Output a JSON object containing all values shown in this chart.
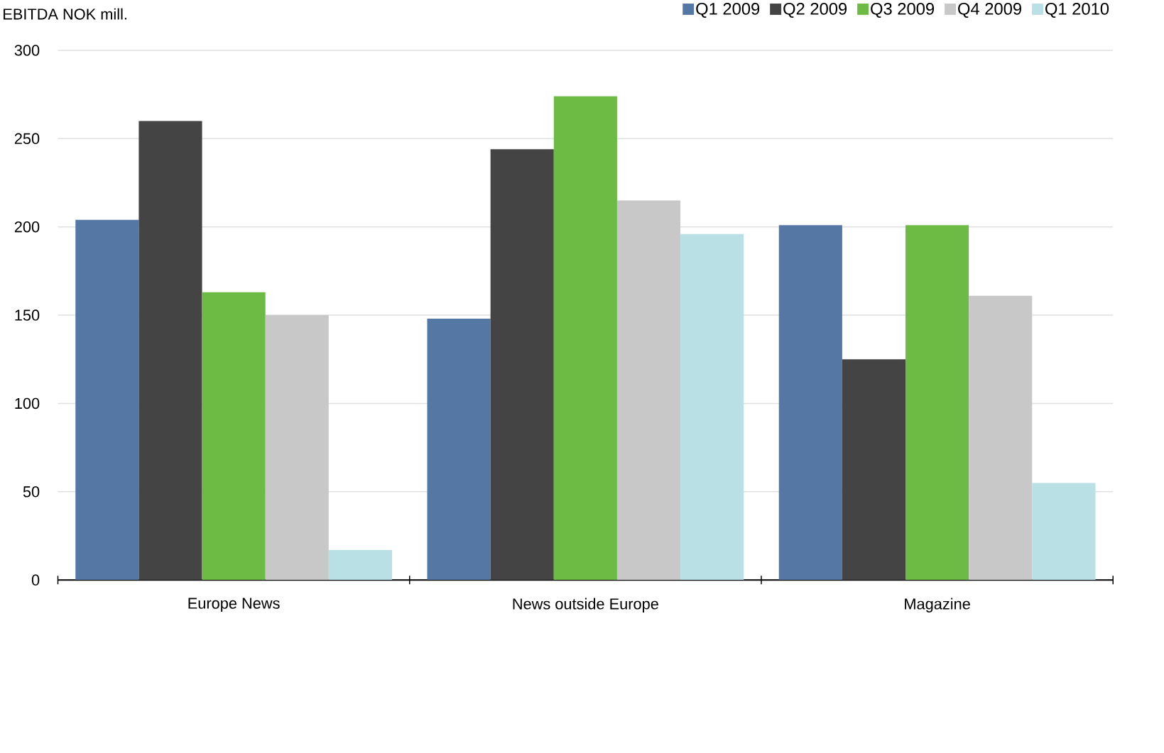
{
  "chart_data": {
    "type": "bar",
    "ylabel": "EBITDA NOK mill.",
    "categories": [
      "Europe News",
      "News outside Europe",
      "Magazine"
    ],
    "series": [
      {
        "name": "Q1 2009",
        "color": "#5577a3",
        "values": [
          204,
          148,
          201
        ]
      },
      {
        "name": "Q2 2009",
        "color": "#444444",
        "values": [
          260,
          244,
          125
        ]
      },
      {
        "name": "Q3 2009",
        "color": "#6dbb45",
        "values": [
          163,
          274,
          201
        ]
      },
      {
        "name": "Q4 2009",
        "color": "#c8c8c8",
        "values": [
          150,
          215,
          161
        ]
      },
      {
        "name": "Q1 2010",
        "color": "#b9e0e4",
        "values": [
          17,
          196,
          55
        ]
      }
    ],
    "ylim": [
      0,
      300
    ],
    "yticks": [
      0,
      50,
      100,
      150,
      200,
      250,
      300
    ],
    "grid": "y",
    "legend": "top right"
  }
}
